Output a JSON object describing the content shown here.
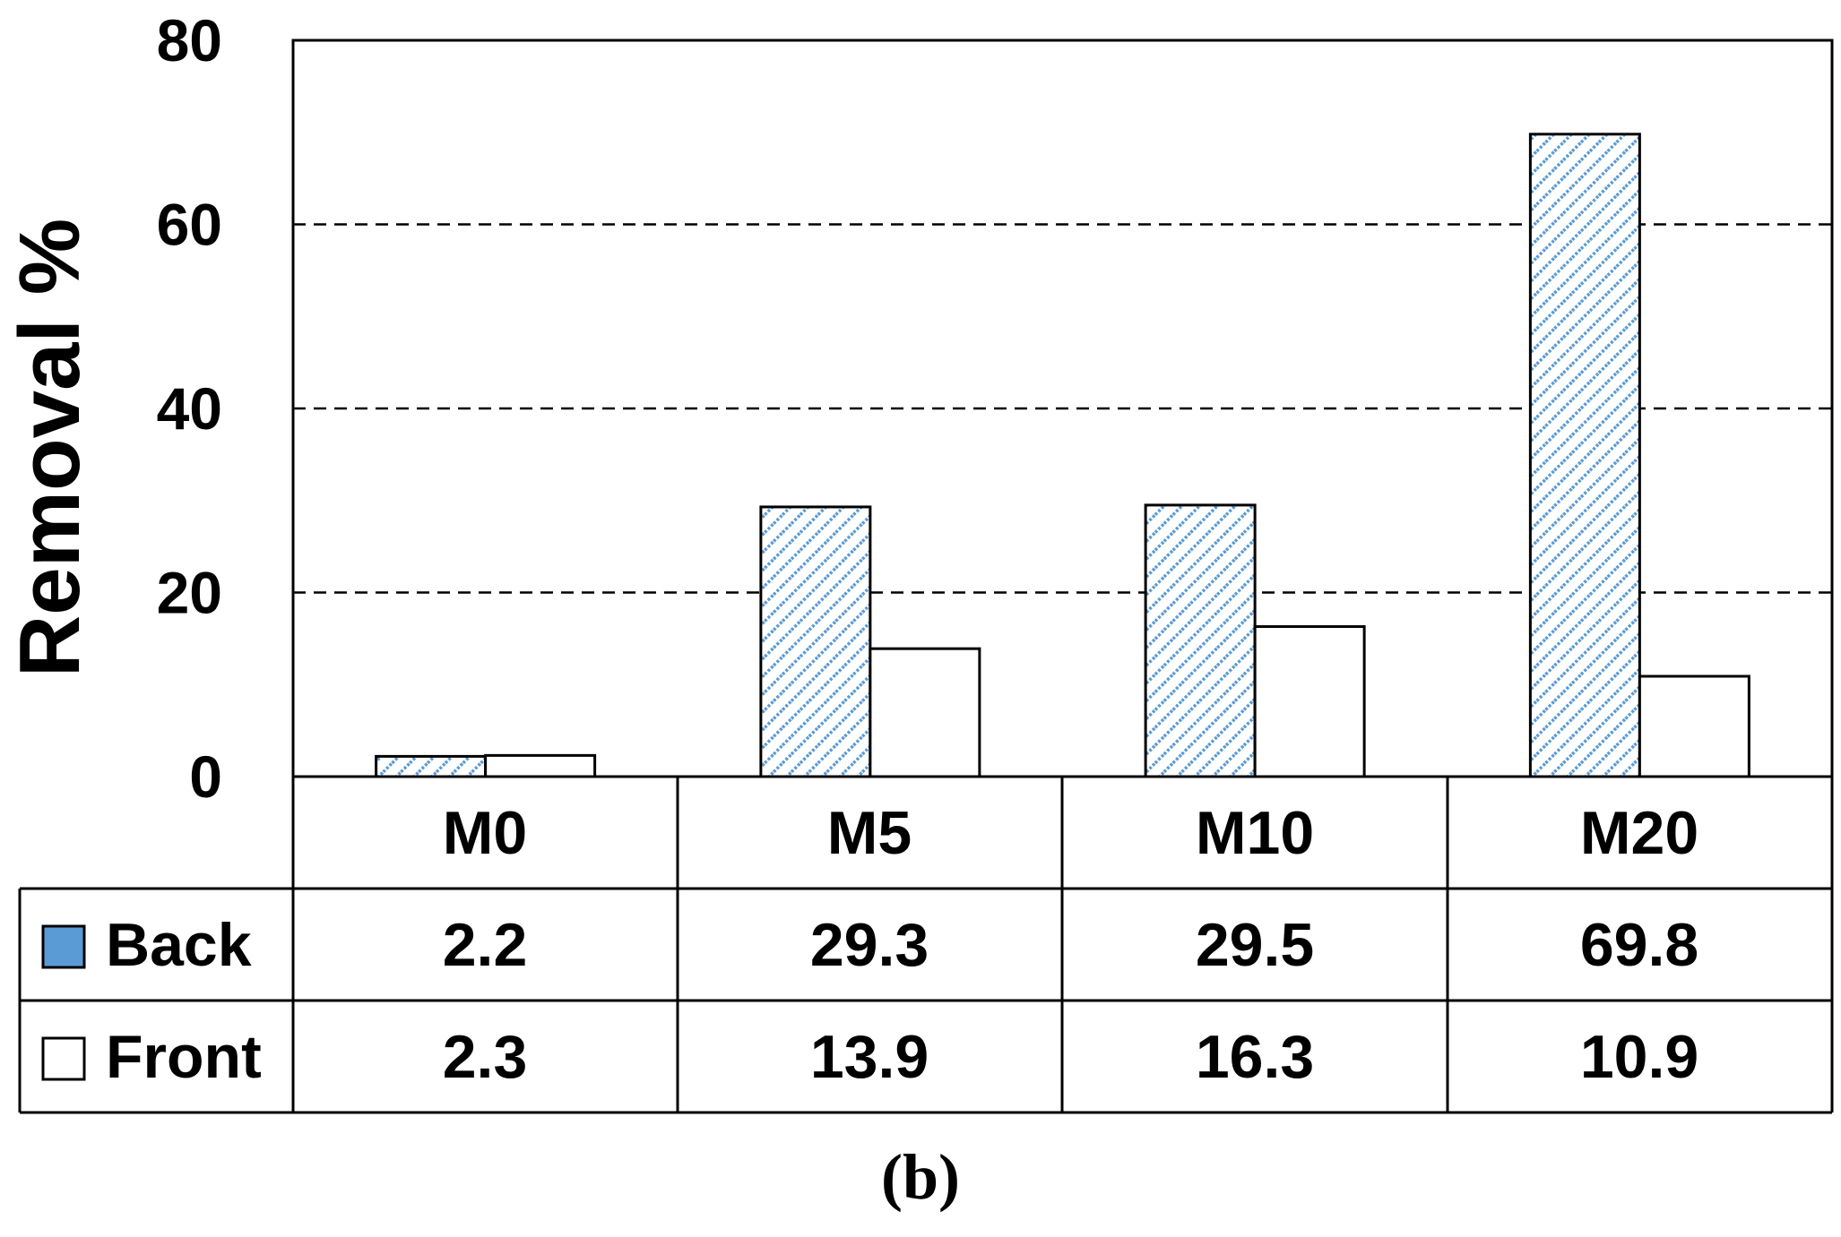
{
  "chart_data": {
    "type": "bar",
    "categories": [
      "M0",
      "M5",
      "M10",
      "M20"
    ],
    "series": [
      {
        "name": "Back",
        "values": [
          2.2,
          29.3,
          29.5,
          69.8
        ]
      },
      {
        "name": "Front",
        "values": [
          2.3,
          13.9,
          16.3,
          10.9
        ]
      }
    ],
    "table_values": {
      "Back": [
        "2.2",
        "29.3",
        "29.5",
        "69.8"
      ],
      "Front": [
        "2.3",
        "13.9",
        "16.3",
        "10.9"
      ]
    },
    "yticks": [
      "0",
      "20",
      "40",
      "60",
      "80"
    ],
    "ylim": [
      0,
      80
    ],
    "ylabel": "Removal %",
    "xlabel": "",
    "title": "",
    "grid": "horizontal dashed at 20, 40, 60",
    "legend": "data table below plot",
    "colors": {
      "back_fill": "#5b9bd5",
      "back_pattern_stripe": "#5b9bd5",
      "front_fill": "#ffffff",
      "outline": "#000000"
    }
  },
  "caption": "(b)"
}
